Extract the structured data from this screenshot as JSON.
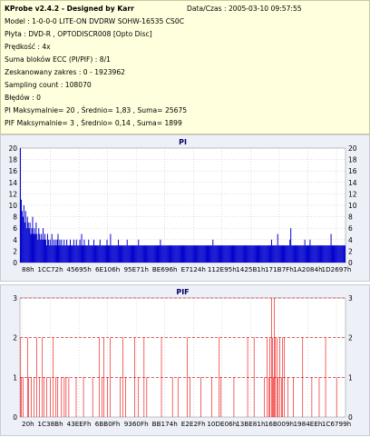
{
  "header": {
    "app_title": "KProbe v2.4.2 - Designed by Karr",
    "date": "Data/Czas : 2005-03-10 09:57:55",
    "lines": [
      "Model : 1-0-0-0 LITE-ON DVDRW SOHW-16535 CS0C",
      "Płyta : DVD-R , OPTODISCR008 [Opto Disc]",
      "Prędkość : 4x",
      "Suma bloków ECC (PI/PIF) : 8/1",
      "Zeskanowany zakres : 0 - 1923962",
      "Sampling count : 108070",
      "Błędów : 0",
      "PI Maksymalnie= 20 , Średnio= 1,83 , Suma= 25675",
      "PIF Maksymalnie= 3 , Średnio= 0,14 , Suma= 1899"
    ]
  },
  "colors": {
    "pi_bars": "#0000cc",
    "pif_bars": "#ee0000",
    "plot_bg": "#ffffff",
    "dash_red": "#cc0000"
  },
  "chart_data": [
    {
      "type": "bar",
      "title": "PI",
      "ylim": [
        0,
        20
      ],
      "yticks": [
        0,
        2,
        4,
        6,
        8,
        10,
        12,
        14,
        16,
        18,
        20
      ],
      "xlabels": [
        "88h",
        "1CC72h",
        "45695h",
        "6E106h",
        "95E71h",
        "BE696h",
        "E7124h",
        "112E95h",
        "1425B1h",
        "171B7Fh",
        "1A2084h",
        "1D2697h"
      ],
      "grid": true,
      "average": 1.83,
      "max": 20,
      "values": [
        20,
        11,
        9,
        8,
        10,
        7,
        9,
        6,
        8,
        7,
        6,
        7,
        5,
        6,
        8,
        5,
        6,
        5,
        7,
        5,
        4,
        6,
        5,
        4,
        5,
        4,
        6,
        4,
        5,
        4,
        3,
        5,
        4,
        3,
        4,
        3,
        5,
        3,
        4,
        3,
        4,
        3,
        4,
        5,
        3,
        4,
        3,
        4,
        3,
        3,
        4,
        3,
        3,
        4,
        3,
        3,
        3,
        4,
        3,
        3,
        3,
        4,
        3,
        3,
        4,
        3,
        3,
        3,
        4,
        3,
        5,
        3,
        3,
        4,
        3,
        3,
        3,
        3,
        4,
        3,
        3,
        3,
        3,
        3,
        4,
        3,
        3,
        3,
        3,
        3,
        3,
        4,
        3,
        3,
        3,
        3,
        3,
        3,
        3,
        4,
        3,
        3,
        3,
        5,
        3,
        3,
        3,
        3,
        3,
        3,
        3,
        3,
        4,
        3,
        3,
        3,
        3,
        3,
        3,
        3,
        3,
        3,
        4,
        3,
        3,
        3,
        3,
        3,
        3,
        3,
        3,
        3,
        3,
        3,
        3,
        4,
        3,
        3,
        3,
        3,
        3,
        3,
        3,
        3,
        3,
        3,
        3,
        3,
        3,
        3,
        3,
        3,
        3,
        3,
        3,
        3,
        3,
        3,
        3,
        3,
        4,
        3,
        3,
        3,
        3,
        3,
        3,
        3,
        3,
        3,
        3,
        3,
        3,
        3,
        3,
        3,
        3,
        3,
        3,
        3,
        3,
        3,
        3,
        3,
        3,
        3,
        3,
        3,
        3,
        3,
        3,
        3,
        3,
        3,
        3,
        3,
        3,
        3,
        3,
        3,
        3,
        3,
        3,
        3,
        3,
        3,
        3,
        3,
        3,
        3,
        3,
        3,
        3,
        3,
        3,
        3,
        3,
        3,
        3,
        3,
        4,
        3,
        3,
        3,
        3,
        3,
        3,
        3,
        3,
        3,
        3,
        3,
        3,
        3,
        3,
        3,
        3,
        3,
        3,
        3,
        3,
        3,
        3,
        3,
        3,
        3,
        3,
        3,
        3,
        3,
        3,
        3,
        3,
        3,
        3,
        3,
        3,
        3,
        3,
        3,
        3,
        3,
        3,
        3,
        3,
        3,
        3,
        3,
        3,
        3,
        3,
        3,
        3,
        3,
        3,
        3,
        3,
        3,
        3,
        3,
        3,
        3,
        3,
        3,
        3,
        3,
        3,
        4,
        3,
        3,
        3,
        3,
        3,
        3,
        5,
        3,
        3,
        3,
        3,
        3,
        3,
        3,
        3,
        3,
        3,
        3,
        3,
        3,
        4,
        6,
        3,
        3,
        3,
        3,
        3,
        3,
        3,
        3,
        3,
        3,
        3,
        3,
        3,
        3,
        3,
        4,
        3,
        3,
        3,
        3,
        3,
        4,
        3,
        3,
        3,
        3,
        3,
        3,
        3,
        3,
        3,
        3,
        3,
        3,
        3,
        3,
        3,
        3,
        3,
        3,
        3,
        3,
        3,
        3,
        3,
        5,
        3,
        3,
        3,
        3,
        3,
        3,
        3,
        3,
        3,
        3,
        3,
        3,
        3,
        3,
        3,
        3
      ]
    },
    {
      "type": "bar",
      "title": "PIF",
      "ylim": [
        0,
        3
      ],
      "yticks": [
        0,
        1,
        2,
        3
      ],
      "xlabels": [
        "20h",
        "1C38Bh",
        "43EEFh",
        "6BB0Fh",
        "9360Fh",
        "BB174h",
        "E2E2Fh",
        "10DE06h",
        "13BE81h",
        "16B009h",
        "1984EEh",
        "1C6799h"
      ],
      "grid": true,
      "average": 0.14,
      "max": 3,
      "values": [
        2,
        1,
        0,
        1,
        0,
        0,
        0,
        0,
        2,
        1,
        0,
        0,
        1,
        0,
        0,
        1,
        0,
        0,
        2,
        0,
        0,
        1,
        0,
        0,
        2,
        0,
        1,
        0,
        0,
        1,
        0,
        0,
        0,
        1,
        0,
        0,
        2,
        0,
        0,
        1,
        0,
        1,
        0,
        0,
        0,
        1,
        0,
        0,
        1,
        0,
        1,
        0,
        0,
        1,
        0,
        0,
        0,
        0,
        0,
        0,
        0,
        1,
        0,
        0,
        0,
        0,
        0,
        0,
        0,
        1,
        0,
        0,
        0,
        0,
        0,
        0,
        0,
        0,
        0,
        1,
        0,
        0,
        0,
        0,
        0,
        0,
        2,
        0,
        0,
        1,
        0,
        2,
        0,
        0,
        0,
        1,
        0,
        0,
        2,
        0,
        0,
        0,
        0,
        0,
        0,
        0,
        0,
        0,
        0,
        1,
        0,
        0,
        2,
        0,
        0,
        1,
        0,
        0,
        0,
        0,
        0,
        0,
        0,
        0,
        0,
        2,
        0,
        0,
        0,
        1,
        0,
        0,
        0,
        0,
        0,
        2,
        0,
        0,
        1,
        0,
        0,
        0,
        0,
        0,
        0,
        0,
        0,
        0,
        0,
        0,
        0,
        0,
        0,
        0,
        2,
        0,
        0,
        0,
        0,
        0,
        0,
        0,
        0,
        0,
        0,
        0,
        1,
        0,
        0,
        0,
        0,
        0,
        1,
        0,
        0,
        0,
        0,
        0,
        0,
        0,
        0,
        0,
        2,
        0,
        0,
        1,
        0,
        0,
        0,
        0,
        0,
        0,
        0,
        0,
        0,
        0,
        0,
        1,
        0,
        0,
        0,
        0,
        0,
        0,
        0,
        0,
        0,
        0,
        0,
        1,
        0,
        0,
        0,
        0,
        0,
        0,
        0,
        2,
        0,
        1,
        0,
        0,
        0,
        0,
        0,
        0,
        0,
        0,
        0,
        0,
        0,
        0,
        0,
        1,
        0,
        0,
        0,
        0,
        0,
        0,
        0,
        0,
        0,
        0,
        0,
        0,
        0,
        0,
        2,
        0,
        0,
        0,
        0,
        0,
        0,
        2,
        0,
        0,
        0,
        0,
        0,
        0,
        0,
        0,
        0,
        0,
        1,
        0,
        0,
        2,
        0,
        1,
        2,
        0,
        3,
        2,
        1,
        3,
        2,
        0,
        2,
        1,
        0,
        2,
        0,
        1,
        2,
        0,
        2,
        0,
        0,
        0,
        1,
        0,
        0,
        0,
        0,
        0,
        1,
        0,
        0,
        0,
        0,
        0,
        0,
        0,
        0,
        0,
        2,
        0,
        0,
        0,
        0,
        0,
        0,
        0,
        0,
        0,
        1,
        0,
        0,
        0,
        0,
        0,
        0,
        0,
        1,
        0,
        0,
        0,
        0,
        0,
        0,
        2,
        0,
        0,
        0,
        0,
        0,
        0,
        0,
        0,
        0,
        0,
        0,
        1,
        0,
        0,
        0,
        0,
        0,
        0,
        0,
        0,
        0
      ]
    }
  ]
}
